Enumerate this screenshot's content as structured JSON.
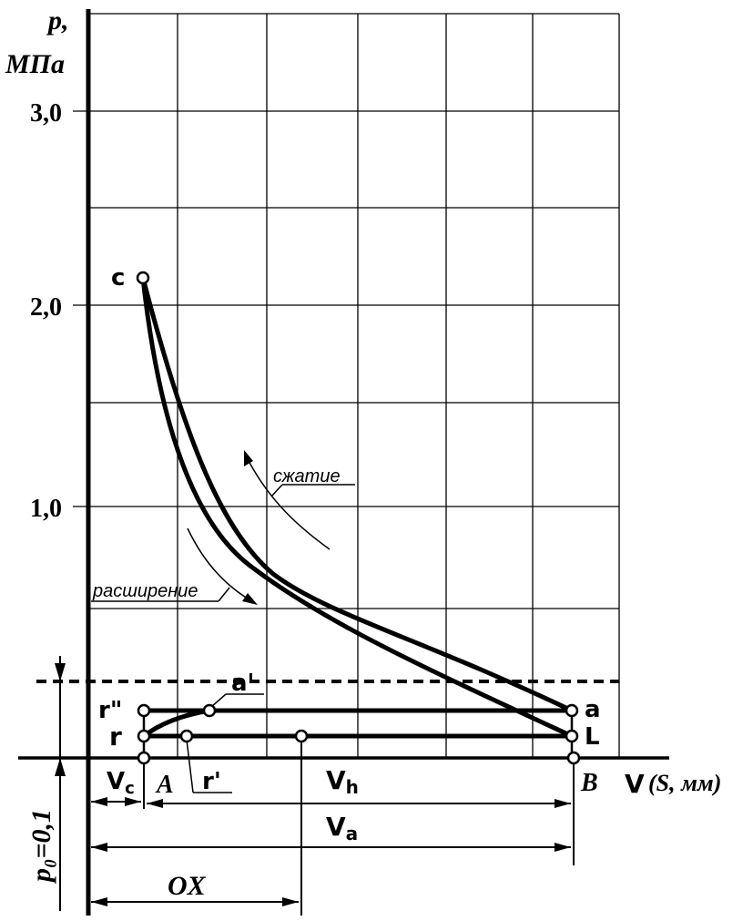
{
  "axes": {
    "y_label_line1": "p,",
    "y_label_line2": "МПа",
    "x_label": "V",
    "x_label_unit": "(S, мм)",
    "y_ticks": [
      "3,0",
      "2,0",
      "1,0"
    ],
    "p0_label": "p₀=0,1"
  },
  "points": {
    "c": "c",
    "a": "a",
    "a_prime": "a'",
    "r": "r",
    "r_double_prime": "r\"",
    "r_prime": "r'",
    "L": "L",
    "A": "A",
    "B": "B"
  },
  "curves": {
    "compression": "сжатие",
    "expansion": "расширение"
  },
  "dimensions": {
    "vc": "V",
    "vc_sub": "c",
    "vh": "V",
    "vh_sub": "h",
    "va": "V",
    "va_sub": "a",
    "ox": "OX"
  }
}
